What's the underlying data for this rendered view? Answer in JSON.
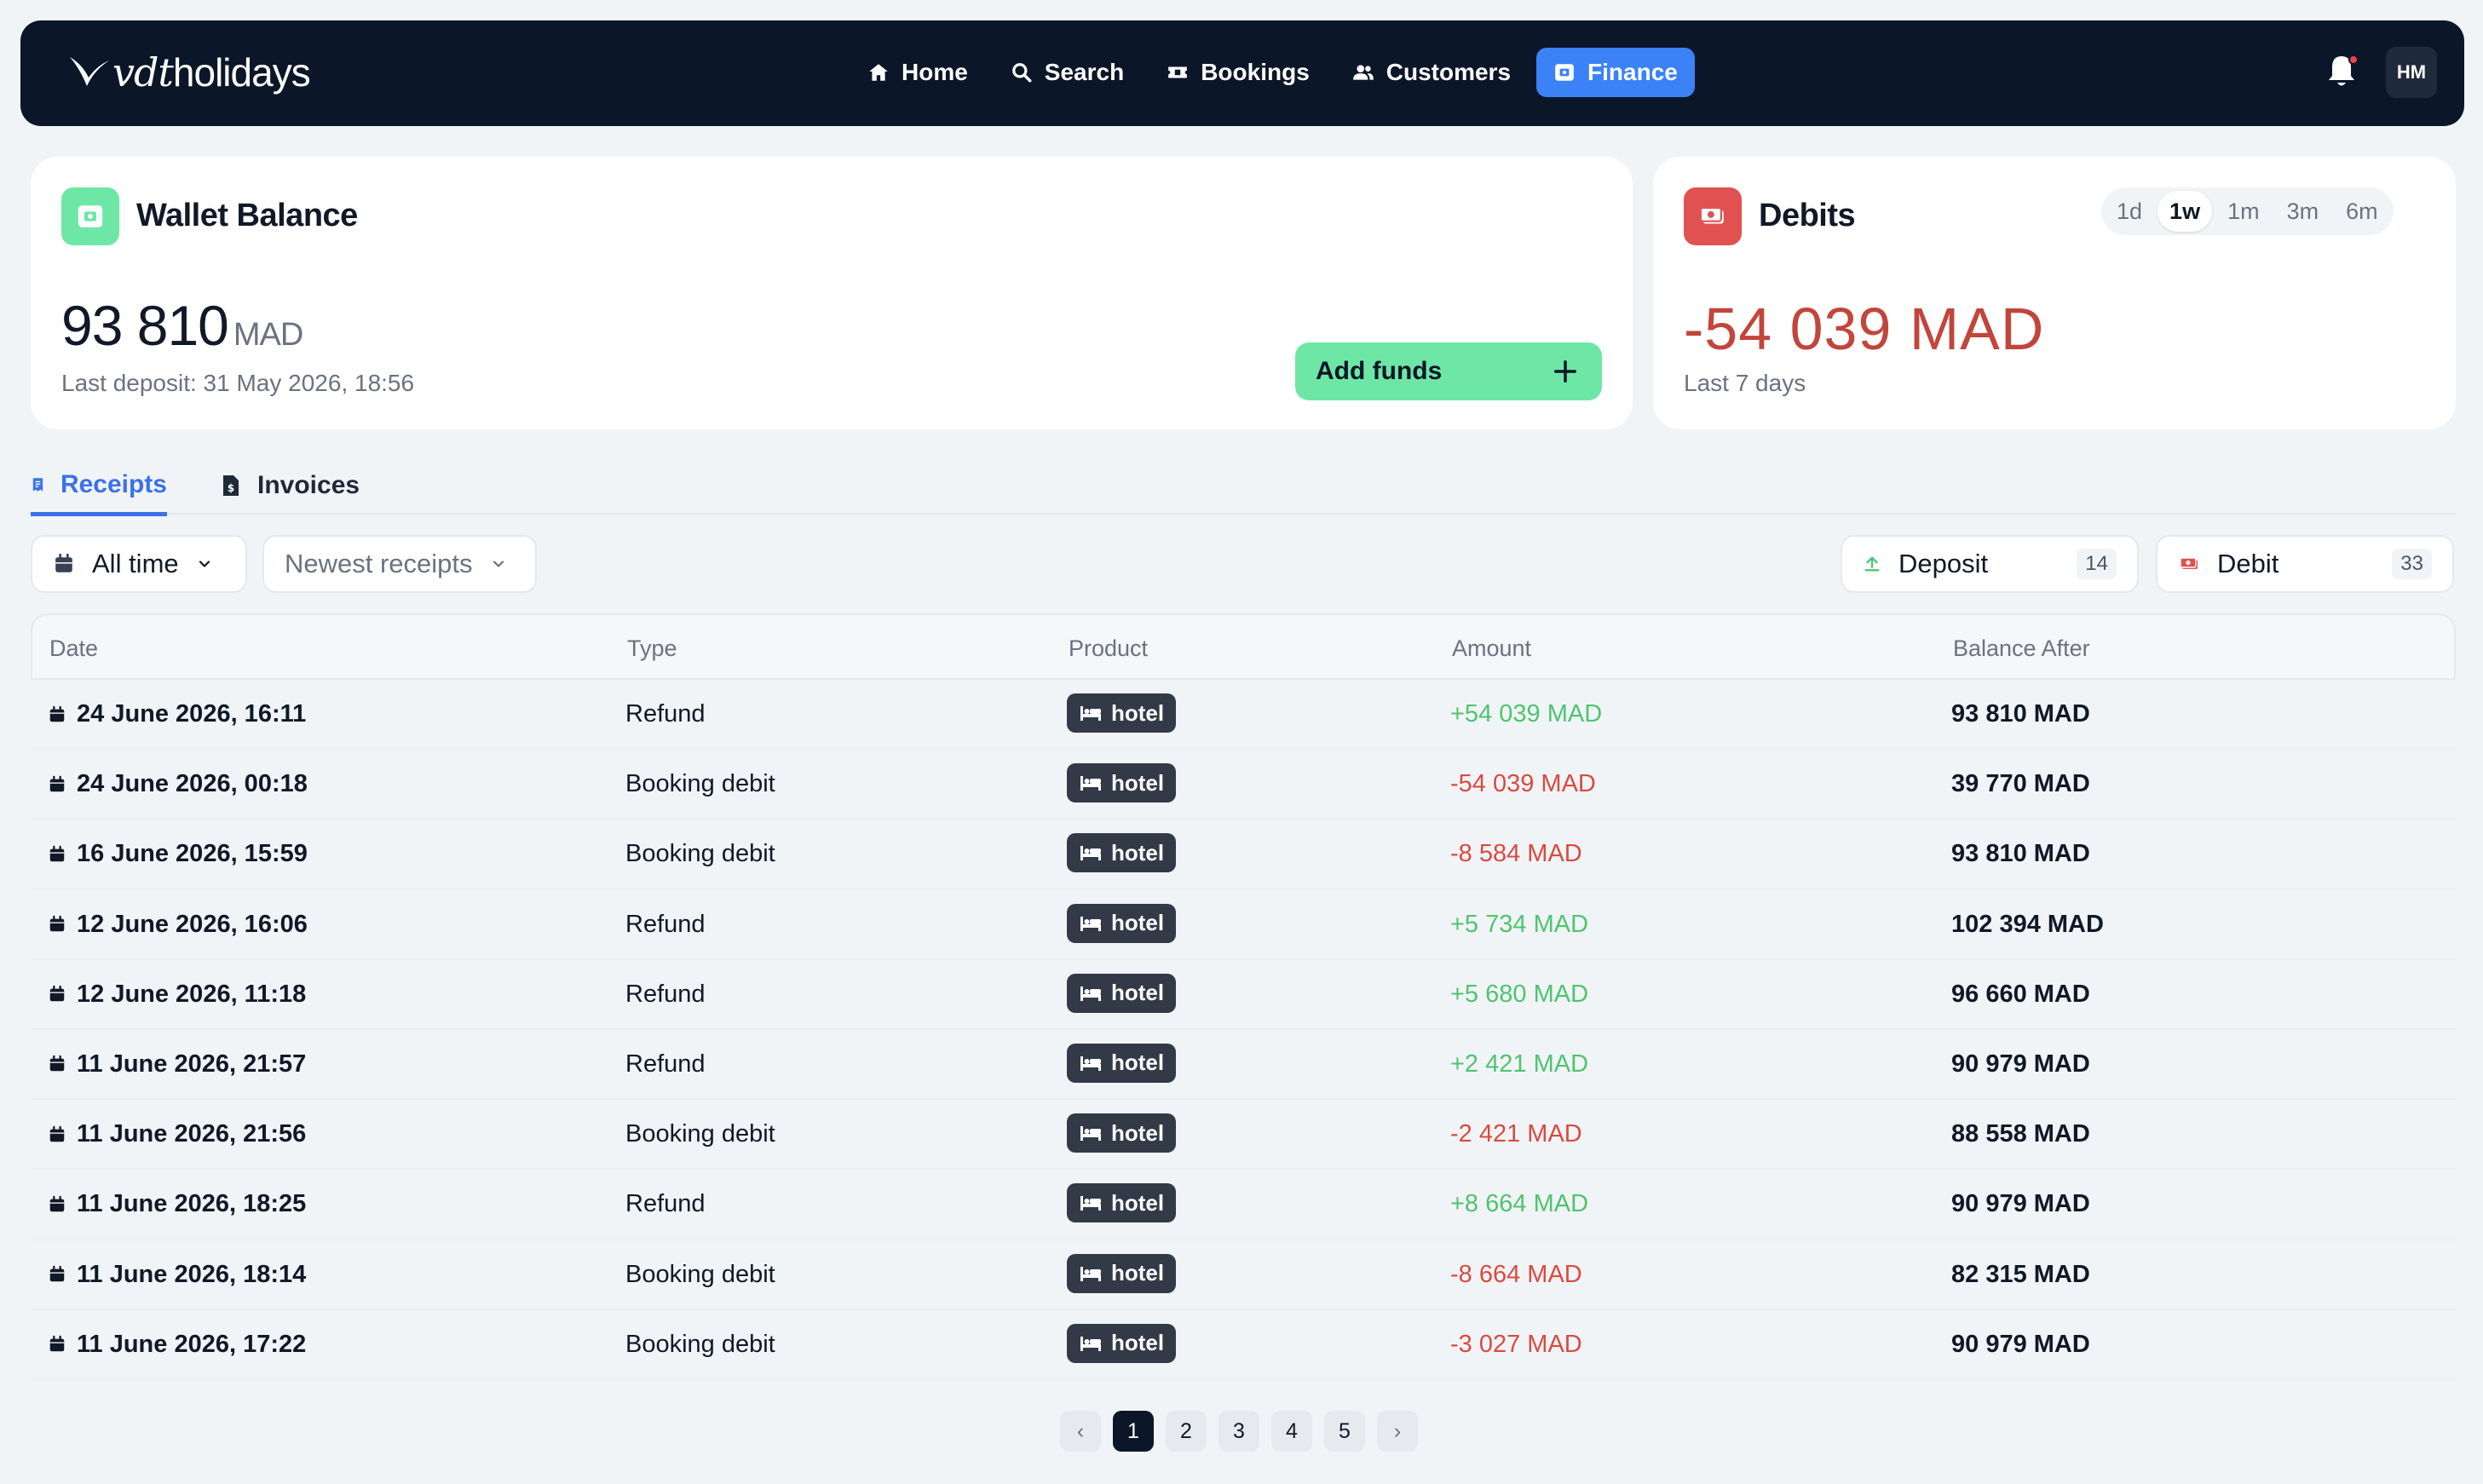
{
  "navbar": {
    "brand_italic": "vdt",
    "brand_rest": "holidays",
    "links": [
      {
        "label": "Home",
        "icon": "home-icon"
      },
      {
        "label": "Search",
        "icon": "search-icon"
      },
      {
        "label": "Bookings",
        "icon": "ticket-icon"
      },
      {
        "label": "Customers",
        "icon": "users-icon"
      },
      {
        "label": "Finance",
        "icon": "wallet-icon",
        "active": true
      }
    ],
    "avatar_initials": "HM",
    "has_notification": true
  },
  "wallet": {
    "title": "Wallet Balance",
    "amount": "93 810",
    "currency": "MAD",
    "last_deposit": "Last deposit: 31 May 2026, 18:56",
    "add_funds_label": "Add funds"
  },
  "debits": {
    "title": "Debits",
    "amount": "-54 039 MAD",
    "period_text": "Last 7 days",
    "ranges": [
      "1d",
      "1w",
      "1m",
      "3m",
      "6m"
    ],
    "active_range": "1w"
  },
  "tabs": {
    "receipts": "Receipts",
    "invoices": "Invoices"
  },
  "filters": {
    "period": "All time",
    "sort": "Newest receipts",
    "deposit_label": "Deposit",
    "deposit_count": "14",
    "debit_label": "Debit",
    "debit_count": "33"
  },
  "table": {
    "columns": [
      "Date",
      "Type",
      "Product",
      "Amount",
      "Balance After"
    ],
    "rows": [
      {
        "date": "24 June 2026, 16:11",
        "type": "Refund",
        "product": "hotel",
        "amount": "+54 039 MAD",
        "sign": "pos",
        "balance": "93 810 MAD"
      },
      {
        "date": "24 June 2026, 00:18",
        "type": "Booking debit",
        "product": "hotel",
        "amount": "-54 039 MAD",
        "sign": "neg",
        "balance": "39 770 MAD"
      },
      {
        "date": "16 June 2026, 15:59",
        "type": "Booking debit",
        "product": "hotel",
        "amount": "-8 584 MAD",
        "sign": "neg",
        "balance": "93 810 MAD"
      },
      {
        "date": "12 June 2026, 16:06",
        "type": "Refund",
        "product": "hotel",
        "amount": "+5 734 MAD",
        "sign": "pos",
        "balance": "102 394 MAD"
      },
      {
        "date": "12 June 2026, 11:18",
        "type": "Refund",
        "product": "hotel",
        "amount": "+5 680 MAD",
        "sign": "pos",
        "balance": "96 660 MAD"
      },
      {
        "date": "11 June 2026, 21:57",
        "type": "Refund",
        "product": "hotel",
        "amount": "+2 421 MAD",
        "sign": "pos",
        "balance": "90 979 MAD"
      },
      {
        "date": "11 June 2026, 21:56",
        "type": "Booking debit",
        "product": "hotel",
        "amount": "-2 421 MAD",
        "sign": "neg",
        "balance": "88 558 MAD"
      },
      {
        "date": "11 June 2026, 18:25",
        "type": "Refund",
        "product": "hotel",
        "amount": "+8 664 MAD",
        "sign": "pos",
        "balance": "90 979 MAD"
      },
      {
        "date": "11 June 2026, 18:14",
        "type": "Booking debit",
        "product": "hotel",
        "amount": "-8 664 MAD",
        "sign": "neg",
        "balance": "82 315 MAD"
      },
      {
        "date": "11 June 2026, 17:22",
        "type": "Booking debit",
        "product": "hotel",
        "amount": "-3 027 MAD",
        "sign": "neg",
        "balance": "90 979 MAD"
      }
    ]
  },
  "pagination": {
    "prev": "‹",
    "next": "›",
    "pages": [
      "1",
      "2",
      "3",
      "4",
      "5"
    ],
    "current": "1"
  },
  "colors": {
    "navbar_bg": "#0b1628",
    "accent_blue": "#3b82f6",
    "positive": "#4fc46f",
    "negative": "#d94b40",
    "add_funds_green": "#6ee7a6"
  }
}
